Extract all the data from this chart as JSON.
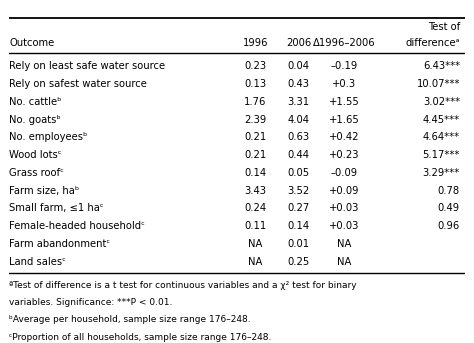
{
  "rows": [
    [
      "Rely on least safe water source",
      "0.23",
      "0.04",
      "–0.19",
      "6.43***"
    ],
    [
      "Rely on safest water source",
      "0.13",
      "0.43",
      "+0.3",
      "10.07***"
    ],
    [
      "No. cattleᵇ",
      "1.76",
      "3.31",
      "+1.55",
      "3.02***"
    ],
    [
      "No. goatsᵇ",
      "2.39",
      "4.04",
      "+1.65",
      "4.45***"
    ],
    [
      "No. employeesᵇ",
      "0.21",
      "0.63",
      "+0.42",
      "4.64***"
    ],
    [
      "Wood lotsᶜ",
      "0.21",
      "0.44",
      "+0.23",
      "5.17***"
    ],
    [
      "Grass roofᶜ",
      "0.14",
      "0.05",
      "–0.09",
      "3.29***"
    ],
    [
      "Farm size, haᵇ",
      "3.43",
      "3.52",
      "+0.09",
      "0.78"
    ],
    [
      "Small farm, ≤1 haᶜ",
      "0.24",
      "0.27",
      "+0.03",
      "0.49"
    ],
    [
      "Female-headed householdᶜ",
      "0.11",
      "0.14",
      "+0.03",
      "0.96"
    ],
    [
      "Farm abandonmentᶜ",
      "NA",
      "0.01",
      "NA",
      ""
    ],
    [
      "Land salesᶜ",
      "NA",
      "0.25",
      "NA",
      ""
    ]
  ],
  "footnotes": [
    "ªTest of difference is a t test for continuous variables and a χ² test for binary",
    "variables. Significance: ***P < 0.01.",
    "ᵇAverage per household, sample size range 176–248.",
    "ᶜProportion of all households, sample size range 176–248."
  ],
  "background_color": "#ffffff",
  "text_color": "#000000",
  "font_size": 7.2
}
